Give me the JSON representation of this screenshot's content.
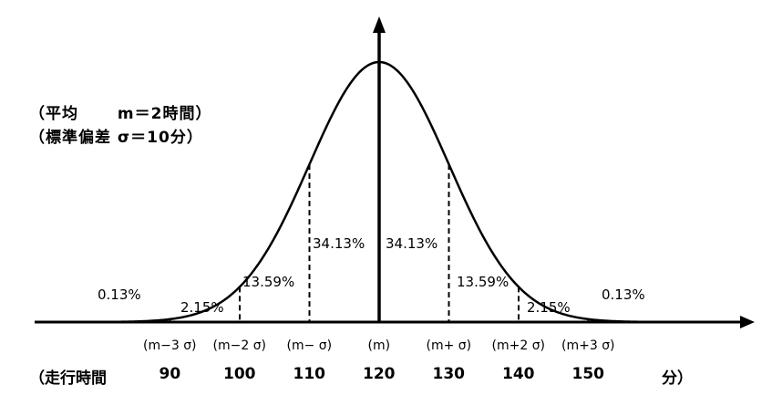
{
  "notes": {
    "mean": "（平均　　 m＝2時間）",
    "std": "（標準偏差 σ＝10分）"
  },
  "chart_data": {
    "type": "normal-distribution",
    "mean": 120,
    "sd": 10,
    "percentages": {
      "inner_left": "34.13%",
      "inner_right": "34.13%",
      "second_left": "13.59%",
      "second_right": "13.59%",
      "third_left": "2.15%",
      "third_right": "2.15%",
      "tail_left": "0.13%",
      "tail_right": "0.13%"
    },
    "sigma_labels": [
      "(m−3 σ)",
      "(m−2 σ)",
      "(m− σ)",
      "(m)",
      "(m+ σ)",
      "(m+2 σ)",
      "(m+3 σ)"
    ],
    "x_ticks": [
      90,
      100,
      110,
      120,
      130,
      140,
      150
    ],
    "row_prefix": "（走行時間",
    "row_suffix": "分）"
  }
}
